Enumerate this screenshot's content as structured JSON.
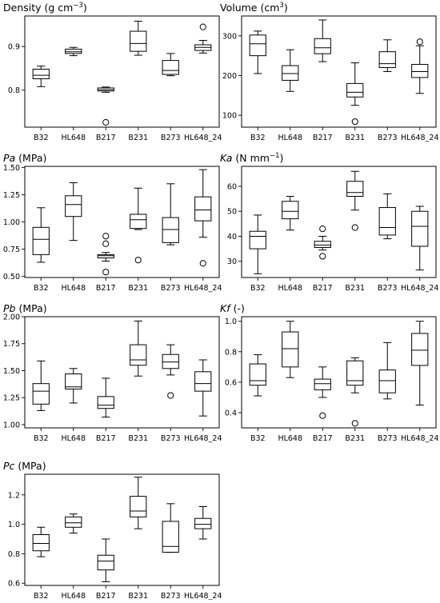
{
  "chart_data": [
    {
      "type": "boxplot",
      "title_parts": [
        {
          "t": "Density (g cm"
        },
        {
          "t": "−3",
          "sup": true
        },
        {
          "t": ")"
        }
      ],
      "categories": [
        "B32",
        "HL648",
        "B217",
        "B231",
        "B273",
        "HL648_24"
      ],
      "ylim": [
        0.715,
        0.97
      ],
      "yticks": [
        0.8,
        0.9
      ],
      "ytick_labels": [
        "0.8",
        "0.9"
      ],
      "boxes": [
        {
          "whislo": 0.808,
          "q1": 0.826,
          "med": 0.834,
          "q3": 0.848,
          "whishi": 0.855,
          "fliers": []
        },
        {
          "whislo": 0.879,
          "q1": 0.884,
          "med": 0.888,
          "q3": 0.894,
          "whishi": 0.898,
          "fliers": []
        },
        {
          "whislo": 0.795,
          "q1": 0.798,
          "med": 0.801,
          "q3": 0.805,
          "whishi": 0.807,
          "fliers": [
            0.726
          ]
        },
        {
          "whislo": 0.88,
          "q1": 0.889,
          "med": 0.907,
          "q3": 0.935,
          "whishi": 0.958,
          "fliers": []
        },
        {
          "whislo": 0.833,
          "q1": 0.836,
          "med": 0.845,
          "q3": 0.868,
          "whishi": 0.884,
          "fliers": []
        },
        {
          "whislo": 0.885,
          "q1": 0.891,
          "med": 0.898,
          "q3": 0.904,
          "whishi": 0.914,
          "fliers": [
            0.945
          ]
        }
      ]
    },
    {
      "type": "boxplot",
      "title_parts": [
        {
          "t": "Volume (cm"
        },
        {
          "t": "3",
          "sup": true
        },
        {
          "t": ")"
        }
      ],
      "categories": [
        "B32",
        "HL648",
        "B217",
        "B231",
        "B273",
        "HL648_24"
      ],
      "ylim": [
        70,
        350
      ],
      "yticks": [
        100,
        200,
        300
      ],
      "ytick_labels": [
        "100",
        "200",
        "300"
      ],
      "boxes": [
        {
          "whislo": 205,
          "q1": 250,
          "med": 280,
          "q3": 302,
          "whishi": 312,
          "fliers": []
        },
        {
          "whislo": 160,
          "q1": 188,
          "med": 205,
          "q3": 225,
          "whishi": 265,
          "fliers": []
        },
        {
          "whislo": 235,
          "q1": 255,
          "med": 270,
          "q3": 293,
          "whishi": 340,
          "fliers": []
        },
        {
          "whislo": 125,
          "q1": 146,
          "med": 158,
          "q3": 180,
          "whishi": 232,
          "fliers": [
            84
          ]
        },
        {
          "whislo": 210,
          "q1": 220,
          "med": 230,
          "q3": 260,
          "whishi": 290,
          "fliers": []
        },
        {
          "whislo": 155,
          "q1": 195,
          "med": 210,
          "q3": 228,
          "whishi": 275,
          "fliers": [
            285
          ]
        }
      ]
    },
    {
      "type": "boxplot",
      "title_parts": [
        {
          "t": "Pa",
          "it": true
        },
        {
          "t": " (MPa)"
        }
      ],
      "categories": [
        "B32",
        "HL648",
        "B217",
        "B231",
        "B273",
        "HL648_24"
      ],
      "ylim": [
        0.49,
        1.51
      ],
      "yticks": [
        0.5,
        0.75,
        1.0,
        1.25,
        1.5
      ],
      "ytick_labels": [
        "0.50",
        "0.75",
        "1.00",
        "1.25",
        "1.50"
      ],
      "boxes": [
        {
          "whislo": 0.63,
          "q1": 0.7,
          "med": 0.84,
          "q3": 0.95,
          "whishi": 1.13,
          "fliers": []
        },
        {
          "whislo": 0.83,
          "q1": 1.05,
          "med": 1.16,
          "q3": 1.24,
          "whishi": 1.36,
          "fliers": []
        },
        {
          "whislo": 0.64,
          "q1": 0.67,
          "med": 0.69,
          "q3": 0.7,
          "whishi": 0.72,
          "fliers": [
            0.54,
            0.8,
            0.87
          ]
        },
        {
          "whislo": 0.93,
          "q1": 0.94,
          "med": 1.02,
          "q3": 1.07,
          "whishi": 1.31,
          "fliers": [
            0.65
          ]
        },
        {
          "whislo": 0.79,
          "q1": 0.81,
          "med": 0.93,
          "q3": 1.04,
          "whishi": 1.35,
          "fliers": []
        },
        {
          "whislo": 0.86,
          "q1": 1.01,
          "med": 1.11,
          "q3": 1.23,
          "whishi": 1.48,
          "fliers": [
            0.62
          ]
        }
      ]
    },
    {
      "type": "boxplot",
      "title_parts": [
        {
          "t": "Ka",
          "it": true
        },
        {
          "t": " (N mm"
        },
        {
          "t": "−1",
          "sup": true
        },
        {
          "t": ")"
        }
      ],
      "categories": [
        "B32",
        "HL648",
        "B217",
        "B231",
        "B273",
        "HL648_24"
      ],
      "ylim": [
        23.5,
        68
      ],
      "yticks": [
        30,
        40,
        50,
        60
      ],
      "ytick_labels": [
        "30",
        "40",
        "50",
        "60"
      ],
      "boxes": [
        {
          "whislo": 25,
          "q1": 35,
          "med": 40,
          "q3": 42,
          "whishi": 48.5,
          "fliers": []
        },
        {
          "whislo": 42.5,
          "q1": 47,
          "med": 50,
          "q3": 54,
          "whishi": 56,
          "fliers": []
        },
        {
          "whislo": 34.5,
          "q1": 35.5,
          "med": 36.5,
          "q3": 38,
          "whishi": 40,
          "fliers": [
            32,
            43
          ]
        },
        {
          "whislo": 50.5,
          "q1": 56,
          "med": 57.5,
          "q3": 62,
          "whishi": 66,
          "fliers": [
            43.5
          ]
        },
        {
          "whislo": 39,
          "q1": 40.5,
          "med": 43.5,
          "q3": 51.5,
          "whishi": 57,
          "fliers": []
        },
        {
          "whislo": 26.5,
          "q1": 36,
          "med": 44,
          "q3": 50,
          "whishi": 52,
          "fliers": []
        }
      ]
    },
    {
      "type": "boxplot",
      "title_parts": [
        {
          "t": "Pb",
          "it": true
        },
        {
          "t": " (MPa)"
        }
      ],
      "categories": [
        "B32",
        "HL648",
        "B217",
        "B231",
        "B273",
        "HL648_24"
      ],
      "ylim": [
        0.97,
        2.0
      ],
      "yticks": [
        1.0,
        1.25,
        1.5,
        1.75,
        2.0
      ],
      "ytick_labels": [
        "1.00",
        "1.25",
        "1.50",
        "1.75",
        "2.00"
      ],
      "boxes": [
        {
          "whislo": 1.13,
          "q1": 1.19,
          "med": 1.31,
          "q3": 1.38,
          "whishi": 1.59,
          "fliers": []
        },
        {
          "whislo": 1.2,
          "q1": 1.33,
          "med": 1.35,
          "q3": 1.47,
          "whishi": 1.52,
          "fliers": []
        },
        {
          "whislo": 1.07,
          "q1": 1.15,
          "med": 1.18,
          "q3": 1.26,
          "whishi": 1.43,
          "fliers": []
        },
        {
          "whislo": 1.45,
          "q1": 1.55,
          "med": 1.6,
          "q3": 1.74,
          "whishi": 1.96,
          "fliers": []
        },
        {
          "whislo": 1.46,
          "q1": 1.52,
          "med": 1.58,
          "q3": 1.65,
          "whishi": 1.74,
          "fliers": [
            1.27
          ]
        },
        {
          "whislo": 1.08,
          "q1": 1.31,
          "med": 1.38,
          "q3": 1.49,
          "whishi": 1.6,
          "fliers": []
        }
      ]
    },
    {
      "type": "boxplot",
      "title_parts": [
        {
          "t": "Kf",
          "it": true
        },
        {
          "t": " (-)"
        }
      ],
      "categories": [
        "B32",
        "HL648",
        "B217",
        "B231",
        "B273",
        "HL648_24"
      ],
      "ylim": [
        0.3,
        1.03
      ],
      "yticks": [
        0.4,
        0.6,
        0.8,
        1.0
      ],
      "ytick_labels": [
        "0.4",
        "0.6",
        "0.8",
        "1.0"
      ],
      "boxes": [
        {
          "whislo": 0.51,
          "q1": 0.58,
          "med": 0.61,
          "q3": 0.72,
          "whishi": 0.78,
          "fliers": []
        },
        {
          "whislo": 0.63,
          "q1": 0.7,
          "med": 0.82,
          "q3": 0.93,
          "whishi": 1.0,
          "fliers": []
        },
        {
          "whislo": 0.5,
          "q1": 0.55,
          "med": 0.59,
          "q3": 0.62,
          "whishi": 0.7,
          "fliers": [
            0.38
          ]
        },
        {
          "whislo": 0.53,
          "q1": 0.58,
          "med": 0.61,
          "q3": 0.74,
          "whishi": 0.76,
          "fliers": [
            0.33
          ]
        },
        {
          "whislo": 0.49,
          "q1": 0.53,
          "med": 0.61,
          "q3": 0.68,
          "whishi": 0.86,
          "fliers": []
        },
        {
          "whislo": 0.45,
          "q1": 0.71,
          "med": 0.81,
          "q3": 0.92,
          "whishi": 1.0,
          "fliers": []
        }
      ]
    },
    {
      "type": "boxplot",
      "title_parts": [
        {
          "t": "Pc",
          "it": true
        },
        {
          "t": " (MPa)"
        }
      ],
      "categories": [
        "B32",
        "HL648",
        "B217",
        "B231",
        "B273",
        "HL648_24"
      ],
      "ylim": [
        0.585,
        1.34
      ],
      "yticks": [
        0.6,
        0.8,
        1.0,
        1.2
      ],
      "ytick_labels": [
        "0.6",
        "0.8",
        "1.0",
        "1.2"
      ],
      "boxes": [
        {
          "whislo": 0.78,
          "q1": 0.82,
          "med": 0.87,
          "q3": 0.93,
          "whishi": 0.98,
          "fliers": []
        },
        {
          "whislo": 0.94,
          "q1": 0.98,
          "med": 1.01,
          "q3": 1.05,
          "whishi": 1.07,
          "fliers": []
        },
        {
          "whislo": 0.61,
          "q1": 0.69,
          "med": 0.75,
          "q3": 0.79,
          "whishi": 0.9,
          "fliers": []
        },
        {
          "whislo": 0.97,
          "q1": 1.05,
          "med": 1.09,
          "q3": 1.19,
          "whishi": 1.32,
          "fliers": []
        },
        {
          "whislo": 0.81,
          "q1": 0.81,
          "med": 0.85,
          "q3": 1.02,
          "whishi": 1.14,
          "fliers": []
        },
        {
          "whislo": 0.9,
          "q1": 0.97,
          "med": 1.0,
          "q3": 1.04,
          "whishi": 1.12,
          "fliers": []
        }
      ]
    }
  ]
}
